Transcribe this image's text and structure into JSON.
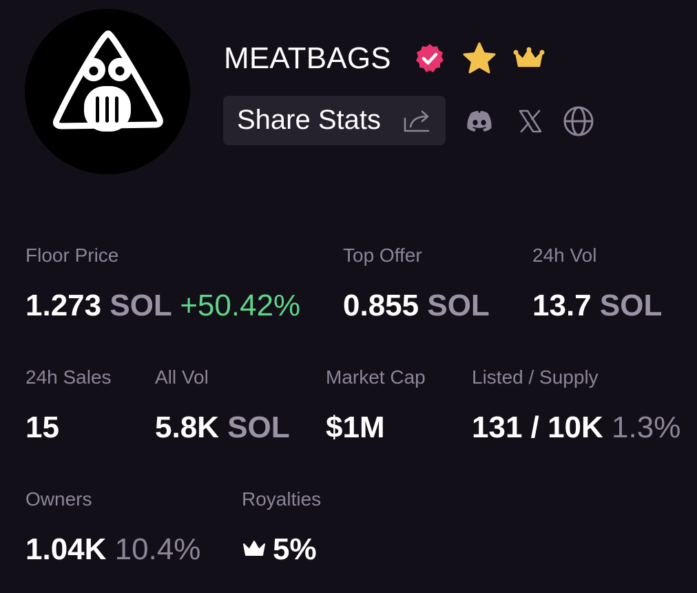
{
  "header": {
    "collection_name": "MEATBAGS",
    "share_label": "Share Stats"
  },
  "icons": {
    "avatar": "meatbags-logo-avatar",
    "verified": "verified-badge-icon",
    "star": "star-icon",
    "crown": "crown-icon",
    "share": "share-icon",
    "discord": "discord-icon",
    "x": "x-logo-icon",
    "website": "globe-icon"
  },
  "colors": {
    "background": "#130f18",
    "verified": "#e8356f",
    "star": "#f2c14e",
    "crown": "#f2c14e",
    "positive_change": "#5fd58a",
    "label": "#8c8598",
    "button_bg": "#26222d"
  },
  "stats": {
    "floor_price": {
      "label": "Floor Price",
      "value": "1.273",
      "unit": "SOL",
      "change": "+50.42%"
    },
    "top_offer": {
      "label": "Top Offer",
      "value": "0.855",
      "unit": "SOL"
    },
    "vol_24h": {
      "label": "24h Vol",
      "value": "13.7",
      "unit": "SOL"
    },
    "sales_24h": {
      "label": "24h Sales",
      "value": "15"
    },
    "all_vol": {
      "label": "All Vol",
      "value": "5.8K",
      "unit": "SOL"
    },
    "market_cap": {
      "label": "Market Cap",
      "value": "$1M"
    },
    "listed_supply": {
      "label": "Listed / Supply",
      "value": "131 / 10K",
      "percent": "1.3%"
    },
    "owners": {
      "label": "Owners",
      "value": "1.04K",
      "percent": "10.4%"
    },
    "royalties": {
      "label": "Royalties",
      "value": "5%"
    }
  }
}
